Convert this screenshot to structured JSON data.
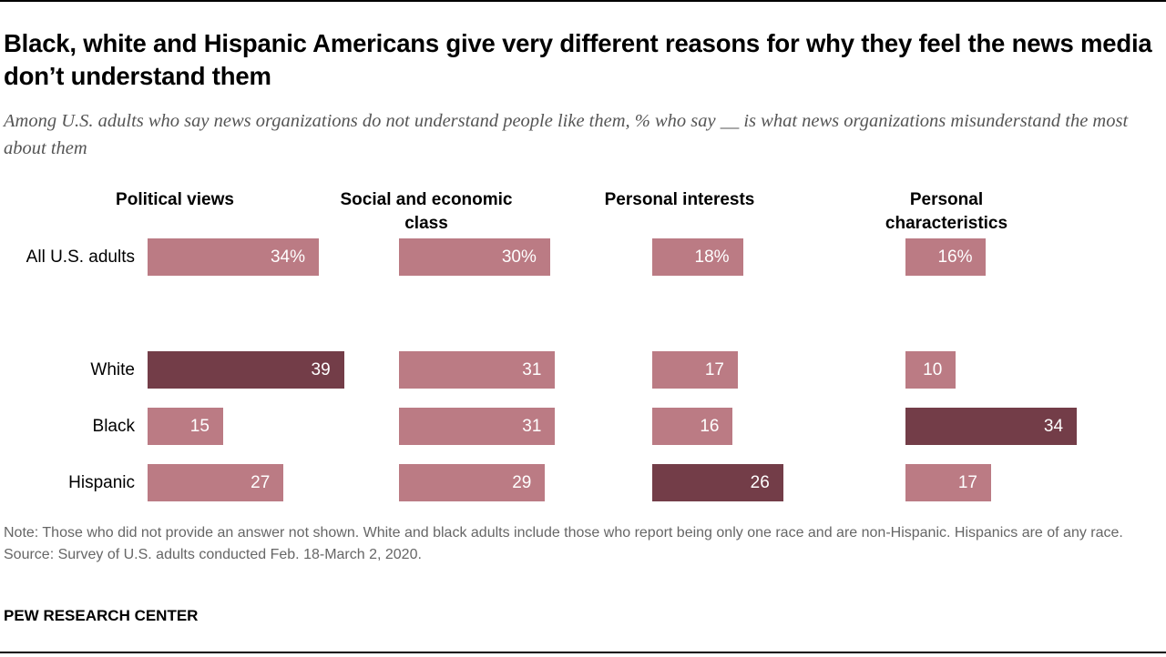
{
  "title": "Black, white and Hispanic Americans give very different reasons for why they feel the news media don’t understand them",
  "subtitle": "Among U.S. adults who say news organizations do not understand people like them, % who say __ is what news organizations misunderstand the most about them",
  "colors": {
    "default": "#bb7b84",
    "highlight": "#733d48"
  },
  "chart_data": {
    "type": "bar",
    "orientation": "horizontal",
    "layout": "small-multiples",
    "panels": [
      "Political views",
      "Social and economic class",
      "Personal interests",
      "Personal characteristics"
    ],
    "categories": [
      "All U.S. adults",
      "White",
      "Black",
      "Hispanic"
    ],
    "unit": "%",
    "values": [
      [
        34,
        30,
        18,
        16
      ],
      [
        39,
        31,
        17,
        10
      ],
      [
        15,
        31,
        16,
        34
      ],
      [
        27,
        29,
        26,
        17
      ]
    ],
    "labels": [
      [
        "34%",
        "30%",
        "18%",
        "16%"
      ],
      [
        "39",
        "31",
        "17",
        "10"
      ],
      [
        "15",
        "31",
        "16",
        "34"
      ],
      [
        "27",
        "29",
        "26",
        "17"
      ]
    ],
    "highlight": [
      [
        false,
        false,
        false,
        false
      ],
      [
        true,
        false,
        false,
        false
      ],
      [
        false,
        false,
        false,
        true
      ],
      [
        false,
        false,
        true,
        false
      ]
    ]
  },
  "note": "Note: Those who did not provide an answer not shown. White and black adults include those who report being only one race and are non-Hispanic. Hispanics are of any race.",
  "source": "Source: Survey of U.S. adults conducted Feb. 18-March 2, 2020.",
  "brand": "PEW RESEARCH CENTER"
}
